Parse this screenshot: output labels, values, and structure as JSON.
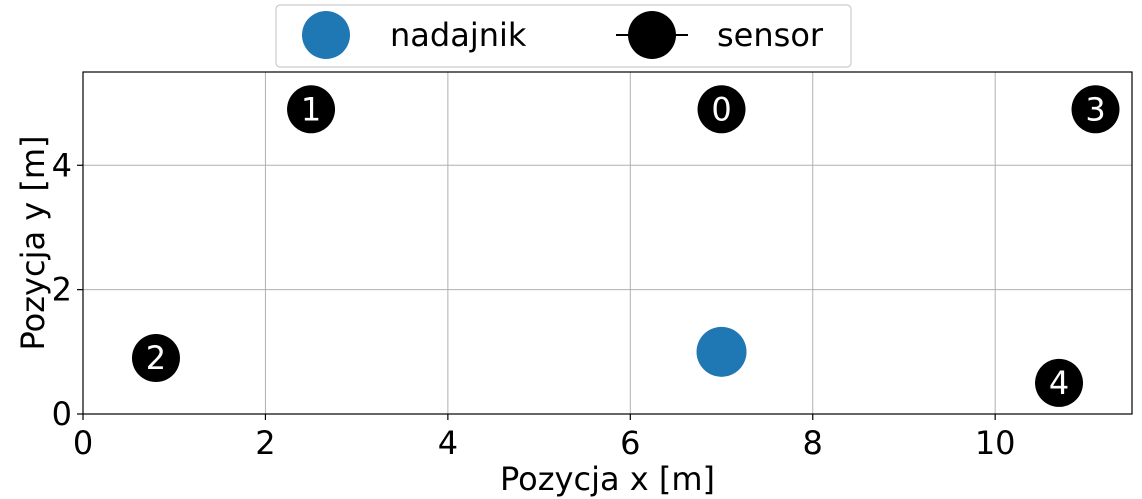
{
  "chart_data": {
    "type": "scatter",
    "xlabel": "Pozycja x [m]",
    "ylabel": "Pozycja y [m]",
    "xlim": [
      0,
      11.5
    ],
    "ylim": [
      0,
      5.5
    ],
    "xticks": [
      0,
      2,
      4,
      6,
      8,
      10
    ],
    "yticks": [
      0,
      2,
      4
    ],
    "grid": true,
    "legend_position": "top-center",
    "series": [
      {
        "name": "nadajnik",
        "color": "#1f77b4",
        "marker": "circle",
        "points": [
          {
            "x": 7.0,
            "y": 1.0
          }
        ]
      },
      {
        "name": "sensor",
        "color": "#000000",
        "marker": "circle",
        "points": [
          {
            "label": "0",
            "x": 7.0,
            "y": 4.9
          },
          {
            "label": "1",
            "x": 2.5,
            "y": 4.9
          },
          {
            "label": "2",
            "x": 0.8,
            "y": 0.9
          },
          {
            "label": "3",
            "x": 11.1,
            "y": 4.9
          },
          {
            "label": "4",
            "x": 10.7,
            "y": 0.5
          }
        ]
      }
    ]
  }
}
